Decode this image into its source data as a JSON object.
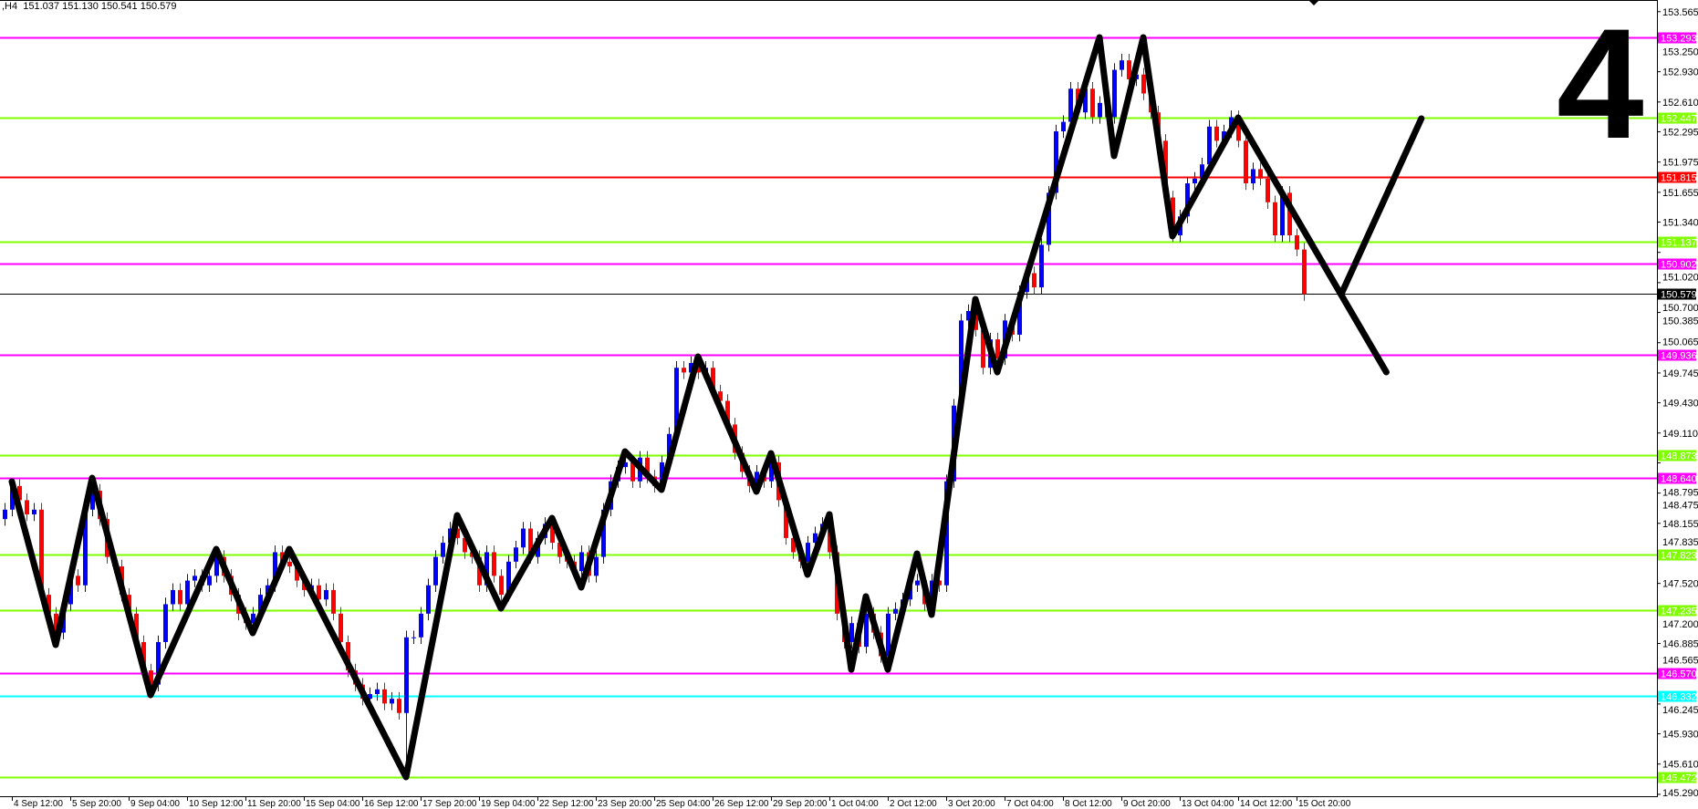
{
  "header": {
    "symbol_timeframe": ",H4",
    "open": "151.037",
    "high": "151.130",
    "low": "150.541",
    "close": "150.579"
  },
  "overlay_label": "4",
  "colors": {
    "bull": "#0000ff",
    "bear": "#ff0000",
    "zigzag": "#000000",
    "axis": "#000000"
  },
  "chart_data": {
    "type": "candlestick",
    "timeframe": "H4",
    "ylim": [
      145.29,
      153.565
    ],
    "grid": false,
    "y_ticks": [
      "153.565",
      "153.250",
      "152.930",
      "152.610",
      "152.295",
      "151.975",
      "151.655",
      "151.340",
      "151.020",
      "150.700",
      "150.385",
      "150.065",
      "149.745",
      "149.430",
      "149.110",
      "148.795",
      "148.475",
      "148.155",
      "147.835",
      "147.520",
      "147.200",
      "146.885",
      "146.565",
      "146.245",
      "145.930",
      "145.610",
      "145.290"
    ],
    "x_ticks": [
      "4 Sep 12:00",
      "5 Sep 20:00",
      "9 Sep 04:00",
      "10 Sep 12:00",
      "11 Sep 20:00",
      "15 Sep 04:00",
      "16 Sep 12:00",
      "17 Sep 20:00",
      "19 Sep 04:00",
      "22 Sep 12:00",
      "23 Sep 20:00",
      "25 Sep 04:00",
      "26 Sep 12:00",
      "29 Sep 20:00",
      "1 Oct 04:00",
      "2 Oct 12:00",
      "3 Oct 20:00",
      "7 Oct 04:00",
      "8 Oct 12:00",
      "9 Oct 20:00",
      "13 Oct 04:00",
      "14 Oct 12:00",
      "15 Oct 20:00"
    ],
    "first_open": 148.2,
    "closes": [
      148.3,
      148.55,
      148.4,
      148.25,
      148.3,
      147.4,
      147.2,
      147.0,
      147.3,
      147.6,
      147.5,
      148.3,
      148.5,
      148.2,
      147.8,
      147.7,
      147.4,
      147.2,
      146.9,
      146.6,
      146.45,
      146.9,
      147.3,
      147.45,
      147.3,
      147.55,
      147.6,
      147.5,
      147.6,
      147.8,
      147.6,
      147.4,
      147.2,
      147.1,
      147.2,
      147.4,
      147.5,
      147.85,
      147.75,
      147.7,
      147.55,
      147.45,
      147.5,
      147.35,
      147.45,
      147.2,
      146.9,
      146.6,
      146.45,
      146.3,
      146.35,
      146.4,
      146.25,
      146.3,
      146.15,
      146.95,
      146.95,
      147.2,
      147.5,
      147.8,
      147.95,
      148.1,
      148.0,
      147.85,
      147.8,
      147.5,
      147.85,
      147.6,
      147.4,
      147.75,
      147.9,
      148.1,
      147.8,
      148.0,
      148.15,
      147.95,
      147.8,
      147.75,
      147.65,
      147.85,
      147.6,
      147.8,
      148.3,
      148.6,
      148.75,
      148.8,
      148.6,
      148.85,
      148.65,
      148.55,
      148.8,
      149.1,
      149.8,
      149.75,
      149.85,
      149.75,
      149.8,
      149.55,
      149.45,
      149.2,
      148.9,
      148.7,
      148.55,
      148.7,
      148.6,
      148.8,
      148.4,
      148.0,
      147.85,
      147.75,
      147.95,
      148.05,
      148.15,
      147.85,
      147.2,
      146.9,
      147.1,
      146.85,
      147.2,
      147.0,
      146.75,
      147.2,
      147.25,
      147.35,
      147.5,
      147.55,
      147.3,
      147.55,
      147.5,
      148.6,
      149.4,
      150.3,
      150.4,
      150.2,
      149.8,
      150.1,
      149.9,
      150.3,
      150.15,
      150.6,
      150.8,
      150.65,
      151.1,
      151.65,
      152.3,
      152.4,
      152.75,
      152.5,
      152.75,
      152.45,
      152.6,
      152.45,
      152.95,
      153.05,
      152.85,
      152.9,
      152.7,
      152.5,
      152.2,
      151.6,
      151.2,
      151.4,
      151.75,
      151.8,
      151.95,
      152.35,
      152.2,
      152.3,
      152.45,
      152.2,
      151.75,
      151.9,
      151.8,
      151.55,
      151.2,
      151.65,
      151.2,
      151.05,
      150.579
    ],
    "zigzag": [
      [
        1,
        148.597
      ],
      [
        7,
        146.871
      ],
      [
        12,
        148.635
      ],
      [
        20,
        146.34
      ],
      [
        29,
        147.883
      ],
      [
        34,
        146.996
      ],
      [
        39,
        147.883
      ],
      [
        55,
        145.472
      ],
      [
        62,
        148.24
      ],
      [
        68,
        147.256
      ],
      [
        75,
        148.211
      ],
      [
        79,
        147.478
      ],
      [
        85,
        148.915
      ],
      [
        90,
        148.51
      ],
      [
        95,
        149.918
      ],
      [
        103,
        148.491
      ],
      [
        105,
        148.896
      ],
      [
        110,
        147.613
      ],
      [
        113,
        148.25
      ],
      [
        116,
        146.61
      ],
      [
        118,
        147.382
      ],
      [
        121,
        146.61
      ],
      [
        125,
        147.835
      ],
      [
        127,
        147.189
      ],
      [
        133,
        150.525
      ],
      [
        136,
        149.754
      ],
      [
        150,
        153.293
      ],
      [
        152,
        152.04
      ],
      [
        156,
        153.293
      ],
      [
        160,
        151.191
      ],
      [
        169,
        152.444
      ],
      [
        183.1,
        150.574
      ],
      [
        189.3,
        149.754
      ]
    ],
    "zigzag_branch": [
      [
        183.1,
        150.574
      ],
      [
        194.1,
        152.435
      ]
    ],
    "levels": [
      {
        "price": 153.293,
        "label": "153.293",
        "color": "#ff00ff"
      },
      {
        "price": 152.447,
        "label": "152.447",
        "color": "#7fff00"
      },
      {
        "price": 151.815,
        "label": "151.815",
        "color": "#ff0000"
      },
      {
        "price": 151.137,
        "label": "151.137",
        "color": "#7fff00"
      },
      {
        "price": 150.902,
        "label": "150.902",
        "color": "#ff00ff"
      },
      {
        "price": 150.579,
        "label": "150.579",
        "color": "#000000"
      },
      {
        "price": 149.936,
        "label": "149.936",
        "color": "#ff00ff"
      },
      {
        "price": 148.873,
        "label": "148.873",
        "color": "#7fff00"
      },
      {
        "price": 148.64,
        "label": "148.640",
        "color": "#ff00ff"
      },
      {
        "price": 147.823,
        "label": "147.823",
        "color": "#7fff00"
      },
      {
        "price": 147.235,
        "label": "147.235",
        "color": "#7fff00"
      },
      {
        "price": 146.57,
        "label": "146.570",
        "color": "#ff00ff"
      },
      {
        "price": 146.332,
        "label": "146.332",
        "color": "#00ffff"
      },
      {
        "price": 145.472,
        "label": "145.472",
        "color": "#7fff00"
      }
    ]
  }
}
